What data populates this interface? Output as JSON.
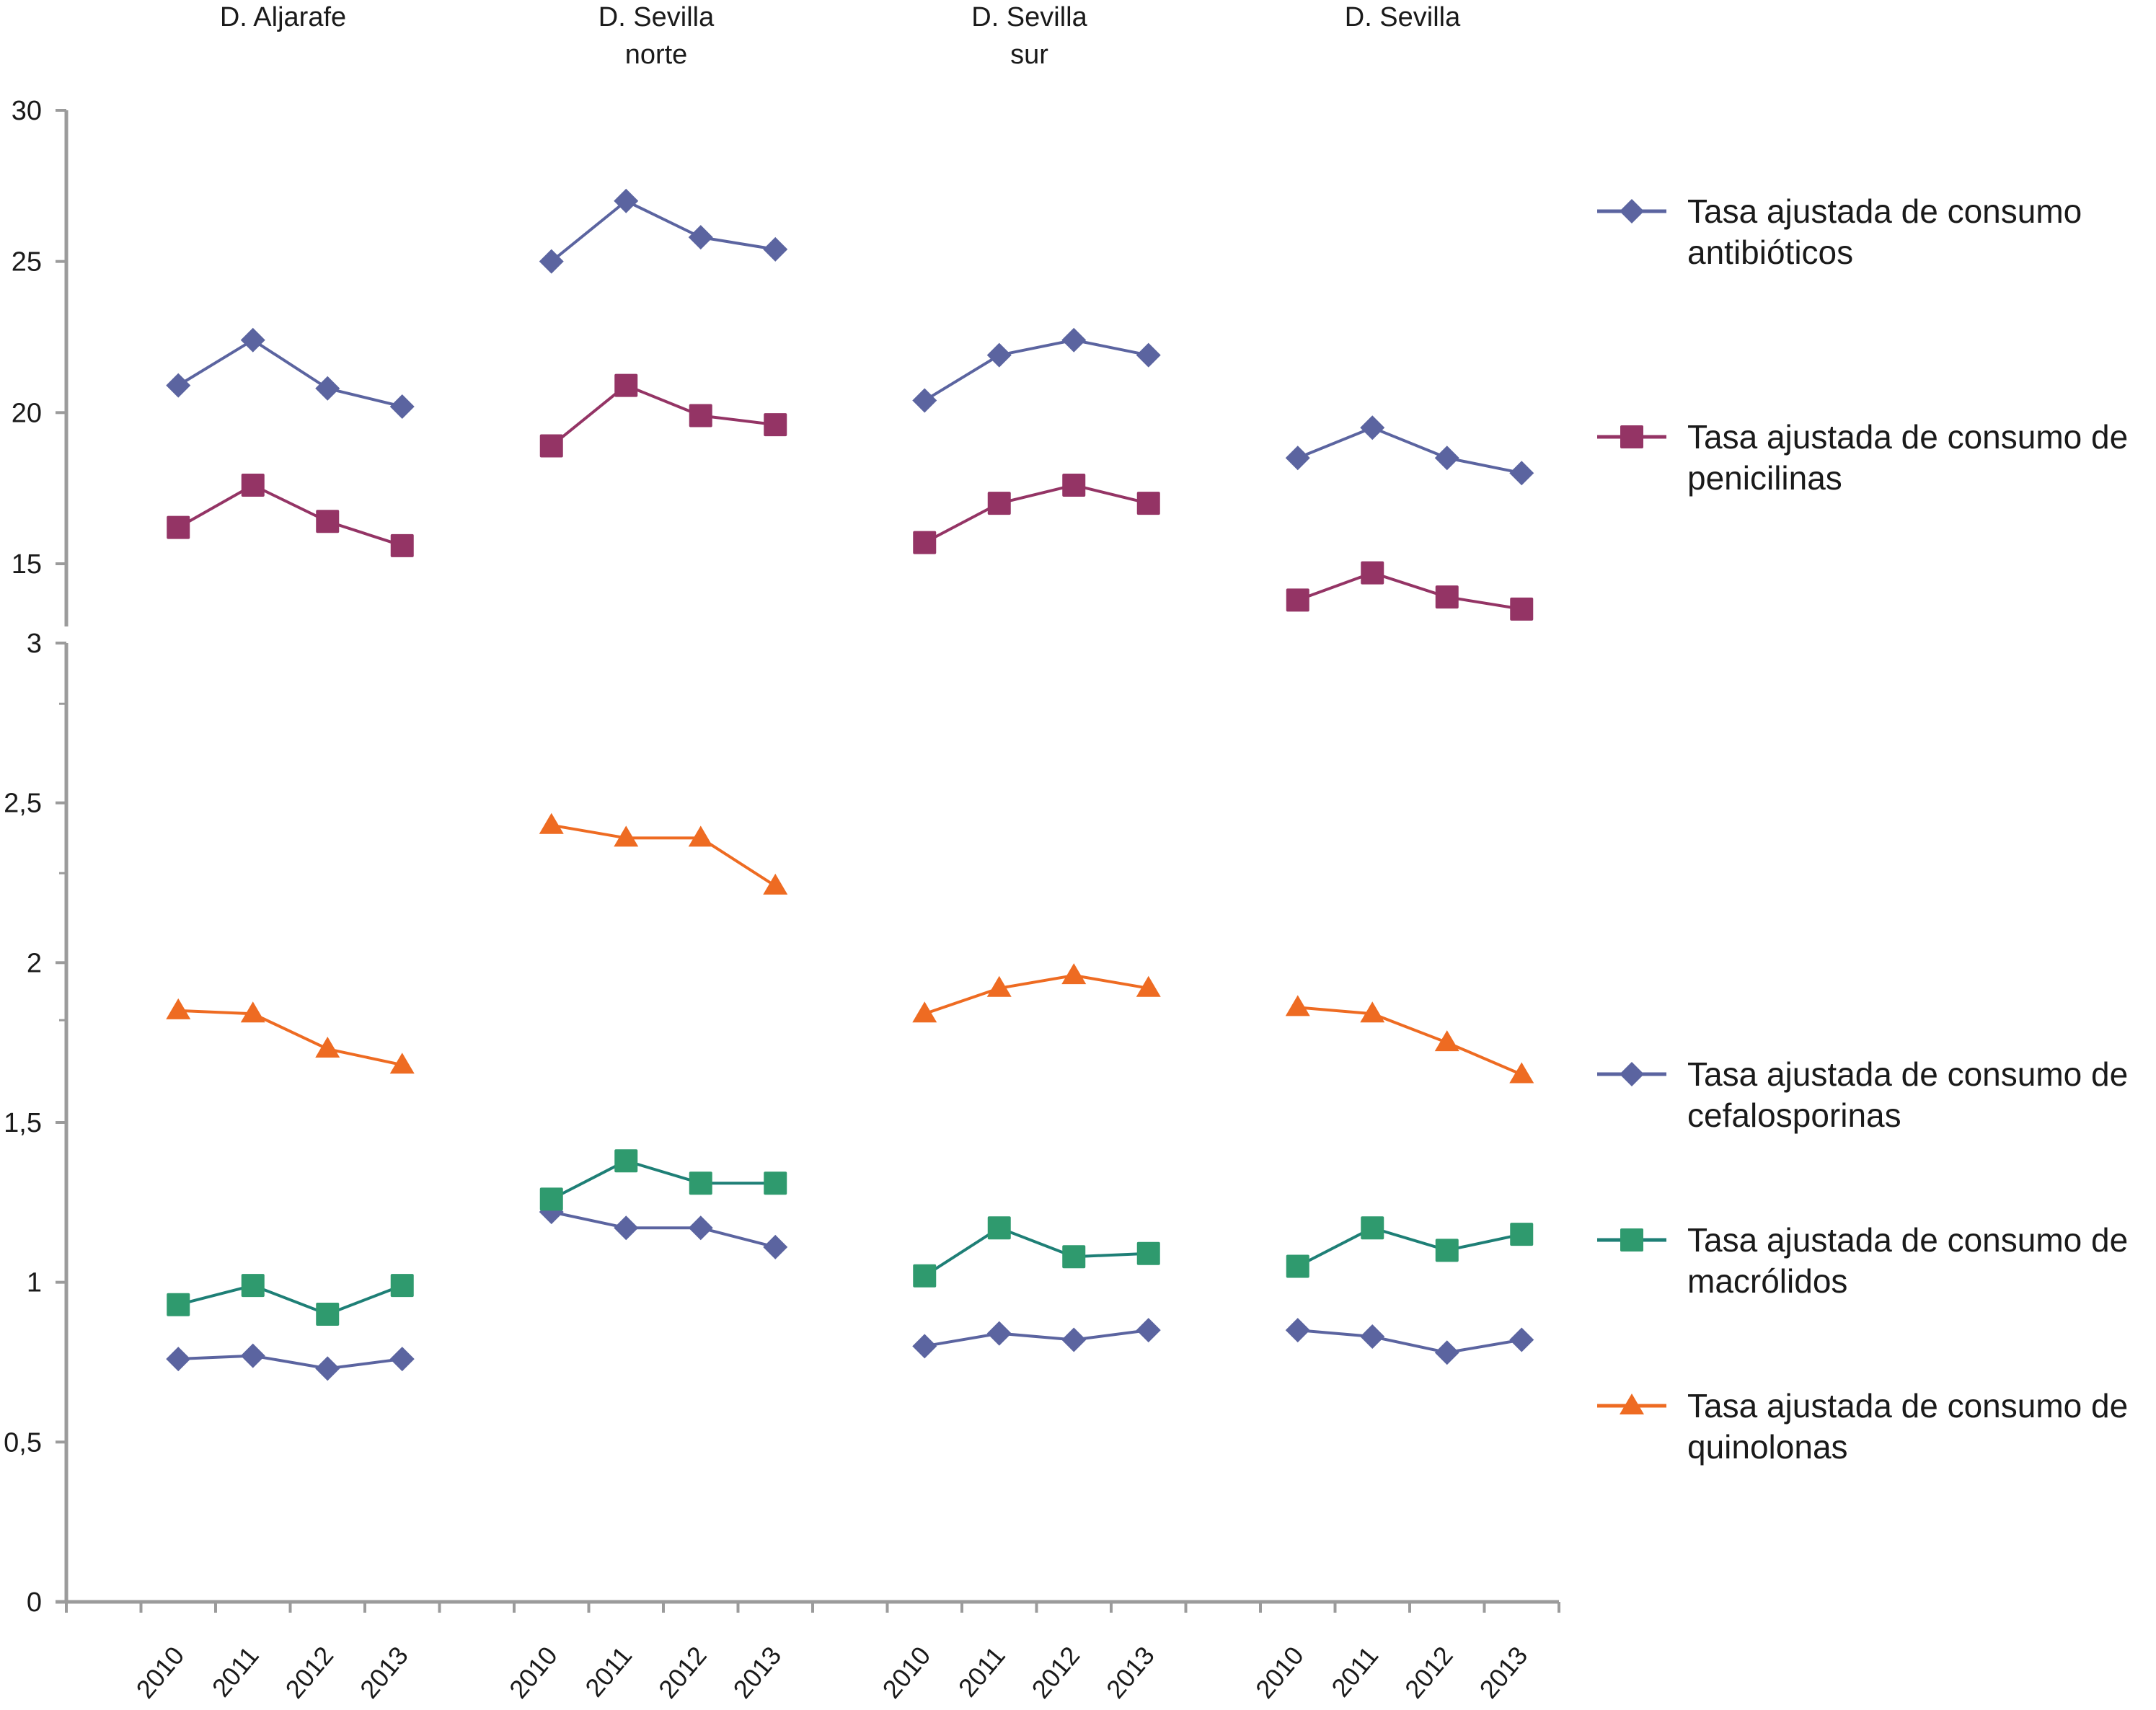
{
  "chart_data": {
    "type": "line",
    "title": "",
    "groups": [
      "D. Aljarafe",
      "D. Sevilla norte",
      "D. Sevilla sur",
      "D. Sevilla"
    ],
    "group_label_lines": [
      [
        "D. Aljarafe"
      ],
      [
        "D. Sevilla",
        "norte"
      ],
      [
        "D. Sevilla",
        "sur"
      ],
      [
        "D. Sevilla"
      ]
    ],
    "x": [
      "2010",
      "2011",
      "2012",
      "2013"
    ],
    "upper_axis": {
      "ylim": [
        13,
        30
      ],
      "ticks": [
        30,
        25,
        20,
        15
      ],
      "tick_labels": [
        "30",
        "25",
        "20",
        "15"
      ]
    },
    "lower_axis": {
      "ylim": [
        0,
        3
      ],
      "ticks": [
        3,
        2.5,
        2,
        1.5,
        1,
        0.5,
        0
      ],
      "tick_labels": [
        "3",
        "2,5",
        "2",
        "1,5",
        "1",
        "0,5",
        "0"
      ]
    },
    "grid": false,
    "legend_position": "right",
    "series": [
      {
        "name": "Tasa ajustada de consumo antibióticos",
        "legend_lines": [
          "Tasa ajustada de consumo",
          "antibióticos"
        ],
        "axis": "upper",
        "marker": "diamond",
        "color": "#5b64a0",
        "values": [
          [
            20.9,
            22.4,
            20.8,
            20.2
          ],
          [
            25.0,
            27.0,
            25.8,
            25.4
          ],
          [
            20.4,
            21.9,
            22.4,
            21.9
          ],
          [
            18.5,
            19.5,
            18.5,
            18.0
          ]
        ]
      },
      {
        "name": "Tasa ajustada de consumo de penicilinas",
        "legend_lines": [
          "Tasa ajustada de consumo de",
          "penicilinas"
        ],
        "axis": "upper",
        "marker": "square",
        "color": "#943465",
        "values": [
          [
            16.2,
            17.6,
            16.4,
            15.6
          ],
          [
            18.9,
            20.9,
            19.9,
            19.6
          ],
          [
            15.7,
            17.0,
            17.6,
            17.0
          ],
          [
            13.8,
            14.7,
            13.9,
            13.5
          ]
        ]
      },
      {
        "name": "Tasa ajustada de consumo de cefalosporinas",
        "legend_lines": [
          "Tasa ajustada de consumo de",
          "cefalosporinas"
        ],
        "axis": "lower",
        "marker": "diamond",
        "color": "#5b64a0",
        "values": [
          [
            0.76,
            0.77,
            0.73,
            0.76
          ],
          [
            1.22,
            1.17,
            1.17,
            1.11
          ],
          [
            0.8,
            0.84,
            0.82,
            0.85
          ],
          [
            0.85,
            0.83,
            0.78,
            0.82
          ]
        ]
      },
      {
        "name": "Tasa ajustada de consumo de macrólidos",
        "legend_lines": [
          "Tasa ajustada de consumo de",
          "macrólidos"
        ],
        "axis": "lower",
        "marker": "square",
        "color": "#2f9a6e",
        "line_color": "#1e7f76",
        "values": [
          [
            0.93,
            0.99,
            0.9,
            0.99
          ],
          [
            1.26,
            1.38,
            1.31,
            1.31
          ],
          [
            1.02,
            1.17,
            1.08,
            1.09
          ],
          [
            1.05,
            1.17,
            1.1,
            1.15
          ]
        ]
      },
      {
        "name": "Tasa ajustada de consumo de quinolonas",
        "legend_lines": [
          "Tasa ajustada de consumo de",
          "quinolonas"
        ],
        "axis": "lower",
        "marker": "triangle",
        "color": "#ee6b22",
        "values": [
          [
            1.85,
            1.84,
            1.73,
            1.68
          ],
          [
            2.43,
            2.39,
            2.39,
            2.24
          ],
          [
            1.84,
            1.92,
            1.96,
            1.92
          ],
          [
            1.86,
            1.84,
            1.75,
            1.65
          ]
        ]
      }
    ]
  }
}
